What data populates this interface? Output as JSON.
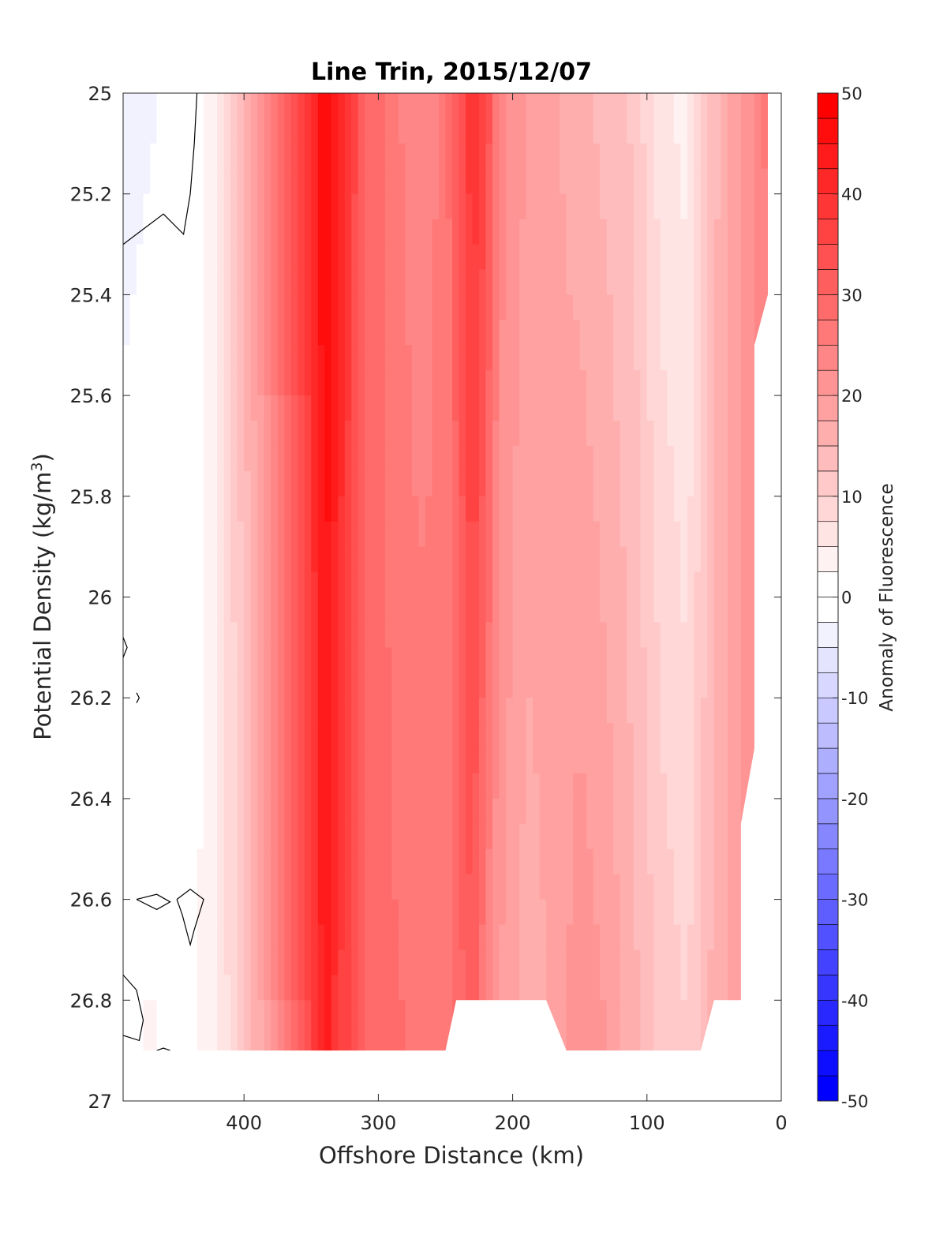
{
  "chart_data": {
    "type": "heatmap",
    "title": "Line Trin, 2015/12/07",
    "xlabel": "Offshore Distance (km)",
    "ylabel_main": "Potential Density (kg/m",
    "ylabel_sup": "3",
    "ylabel_close": ")",
    "xlim": [
      490,
      0
    ],
    "ylim": [
      25,
      27
    ],
    "y_reversed": true,
    "x_reversed": true,
    "x_ticks": [
      "400",
      "300",
      "200",
      "100",
      "0"
    ],
    "x_tick_values": [
      400,
      300,
      200,
      100,
      0
    ],
    "y_ticks": [
      "25",
      "25.2",
      "25.4",
      "25.6",
      "25.8",
      "26",
      "26.2",
      "26.4",
      "26.6",
      "26.8",
      "27"
    ],
    "y_tick_values": [
      25,
      25.2,
      25.4,
      25.6,
      25.8,
      26,
      26.2,
      26.4,
      26.6,
      26.8,
      27
    ],
    "colorbar": {
      "label": "Anomaly of Fluorescence",
      "ticks": [
        "50",
        "40",
        "30",
        "20",
        "10",
        "0",
        "-10",
        "-20",
        "-30",
        "-40",
        "-50"
      ],
      "tick_values": [
        50,
        40,
        30,
        20,
        10,
        0,
        -10,
        -20,
        -30,
        -40,
        -50
      ],
      "range": [
        -50,
        50
      ],
      "levels_step": 2.5,
      "colormap": "blue-white-red",
      "color_neg": "#0000ff",
      "color_zero": "#ffffff",
      "color_pos": "#ff0000"
    },
    "bottom_profile": [
      [
        490,
        26.9
      ],
      [
        250,
        26.9
      ],
      [
        242,
        26.8
      ],
      [
        175,
        26.8
      ],
      [
        160,
        26.9
      ],
      [
        60,
        26.9
      ],
      [
        50,
        26.8
      ],
      [
        30,
        26.8
      ],
      [
        30,
        26.45
      ],
      [
        20,
        26.3
      ],
      [
        20,
        25.5
      ],
      [
        10,
        25.4
      ],
      [
        10,
        25
      ]
    ],
    "x_distance_km": [
      490,
      470,
      450,
      430,
      410,
      390,
      370,
      350,
      340,
      330,
      310,
      290,
      270,
      250,
      230,
      220,
      210,
      190,
      170,
      150,
      130,
      110,
      90,
      70,
      50,
      30,
      10
    ],
    "anomaly_profile_upper": [
      -4,
      -3,
      -1,
      2,
      10,
      20,
      30,
      40,
      48,
      44,
      30,
      26,
      23,
      26,
      40,
      36,
      24,
      20,
      18,
      16,
      14,
      12,
      6,
      4,
      14,
      20,
      26
    ],
    "anomaly_profile_lower": [
      1,
      3,
      1,
      3,
      8,
      16,
      26,
      36,
      44,
      38,
      30,
      28,
      27,
      25,
      32,
      24,
      20,
      16,
      18,
      22,
      20,
      16,
      12,
      10,
      16,
      20,
      22
    ]
  }
}
